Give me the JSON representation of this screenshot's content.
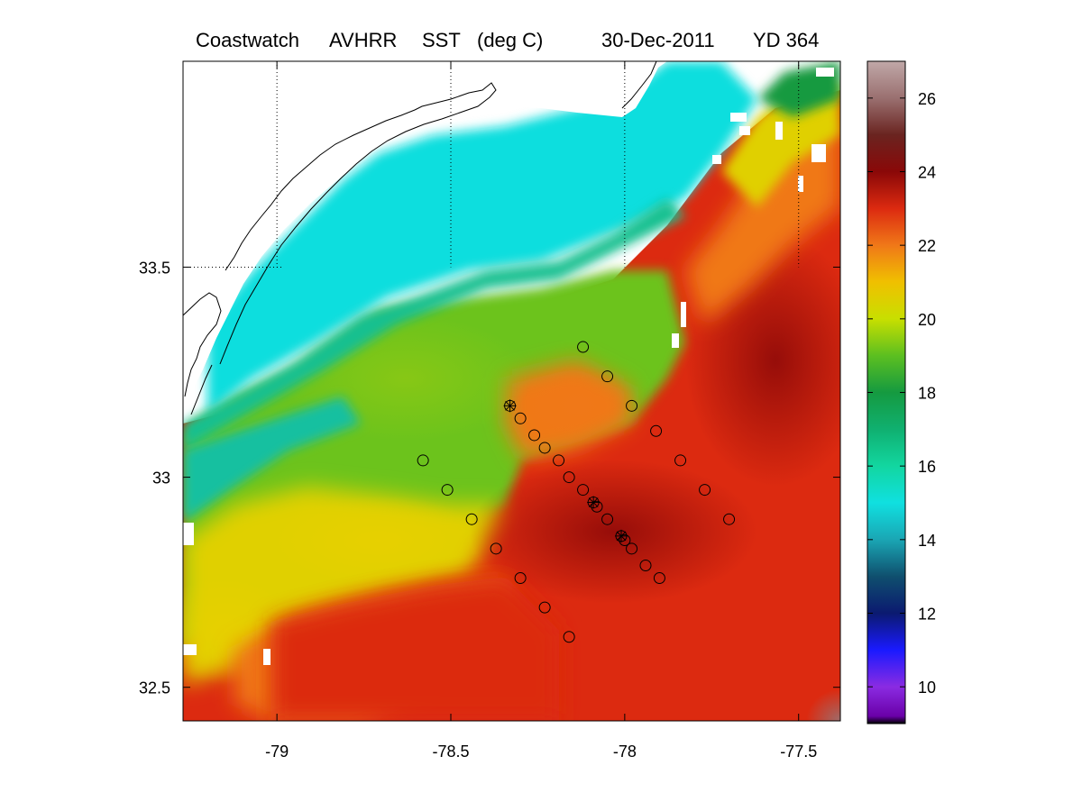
{
  "header": {
    "title_parts": [
      "Coastwatch",
      "AVHRR",
      "SST",
      "(deg C)"
    ],
    "date": "30-Dec-2011",
    "yearday": "YD 364"
  },
  "map": {
    "type": "sea surface temperature map",
    "xlim": [
      -79.27,
      -77.38
    ],
    "ylim": [
      32.42,
      33.99
    ],
    "xticks": [
      {
        "value": -79,
        "label": "-79"
      },
      {
        "value": -78.5,
        "label": "-78.5"
      },
      {
        "value": -78,
        "label": "-78"
      },
      {
        "value": -77.5,
        "label": "-77.5"
      }
    ],
    "yticks": [
      {
        "value": 33.5,
        "label": "33.5"
      },
      {
        "value": 33,
        "label": "33"
      },
      {
        "value": 32.5,
        "label": "32.5"
      }
    ],
    "gridlines": "dotted, land only",
    "stations": [
      {
        "lon": -78.12,
        "lat": 33.31
      },
      {
        "lon": -78.05,
        "lat": 33.24
      },
      {
        "lon": -77.98,
        "lat": 33.17
      },
      {
        "lon": -77.91,
        "lat": 33.11
      },
      {
        "lon": -77.84,
        "lat": 33.04
      },
      {
        "lon": -77.77,
        "lat": 32.97
      },
      {
        "lon": -77.7,
        "lat": 32.9
      },
      {
        "lon": -78.33,
        "lat": 33.17,
        "marker": "star"
      },
      {
        "lon": -78.3,
        "lat": 33.14
      },
      {
        "lon": -78.26,
        "lat": 33.1
      },
      {
        "lon": -78.23,
        "lat": 33.07
      },
      {
        "lon": -78.19,
        "lat": 33.04
      },
      {
        "lon": -78.16,
        "lat": 33.0
      },
      {
        "lon": -78.12,
        "lat": 32.97
      },
      {
        "lon": -78.09,
        "lat": 32.94,
        "marker": "star"
      },
      {
        "lon": -78.08,
        "lat": 32.93
      },
      {
        "lon": -78.05,
        "lat": 32.9
      },
      {
        "lon": -78.01,
        "lat": 32.86,
        "marker": "star"
      },
      {
        "lon": -78.0,
        "lat": 32.85
      },
      {
        "lon": -77.98,
        "lat": 32.83
      },
      {
        "lon": -77.94,
        "lat": 32.79
      },
      {
        "lon": -77.9,
        "lat": 32.76
      },
      {
        "lon": -78.58,
        "lat": 33.04
      },
      {
        "lon": -78.51,
        "lat": 32.97
      },
      {
        "lon": -78.44,
        "lat": 32.9
      },
      {
        "lon": -78.37,
        "lat": 32.83
      },
      {
        "lon": -78.3,
        "lat": 32.76
      },
      {
        "lon": -78.23,
        "lat": 32.69
      },
      {
        "lon": -78.16,
        "lat": 32.62
      }
    ]
  },
  "colorbar": {
    "label": "SST (deg C)",
    "range": [
      9,
      27
    ],
    "ticks": [
      {
        "value": 10,
        "label": "10"
      },
      {
        "value": 12,
        "label": "12"
      },
      {
        "value": 14,
        "label": "14"
      },
      {
        "value": 16,
        "label": "16"
      },
      {
        "value": 18,
        "label": "18"
      },
      {
        "value": 20,
        "label": "20"
      },
      {
        "value": 22,
        "label": "22"
      },
      {
        "value": 24,
        "label": "24"
      },
      {
        "value": 26,
        "label": "26"
      }
    ],
    "colormap": [
      {
        "t": 9.0,
        "color": "#000000"
      },
      {
        "t": 9.2,
        "color": "#6a00a8"
      },
      {
        "t": 10.0,
        "color": "#8a2be2"
      },
      {
        "t": 11.0,
        "color": "#1a1aff"
      },
      {
        "t": 12.0,
        "color": "#0b1a70"
      },
      {
        "t": 13.0,
        "color": "#0f4f6e"
      },
      {
        "t": 14.0,
        "color": "#1aa6b4"
      },
      {
        "t": 15.0,
        "color": "#10e0e0"
      },
      {
        "t": 16.0,
        "color": "#12d6a0"
      },
      {
        "t": 17.0,
        "color": "#10b070"
      },
      {
        "t": 18.0,
        "color": "#159a40"
      },
      {
        "t": 19.0,
        "color": "#5cbf20"
      },
      {
        "t": 20.0,
        "color": "#c8df00"
      },
      {
        "t": 21.0,
        "color": "#f0c000"
      },
      {
        "t": 22.0,
        "color": "#f07818"
      },
      {
        "t": 23.0,
        "color": "#dc2a10"
      },
      {
        "t": 24.0,
        "color": "#8a0808"
      },
      {
        "t": 25.0,
        "color": "#6a2420"
      },
      {
        "t": 26.0,
        "color": "#9a7070"
      },
      {
        "t": 27.0,
        "color": "#c0a8a8"
      }
    ]
  }
}
